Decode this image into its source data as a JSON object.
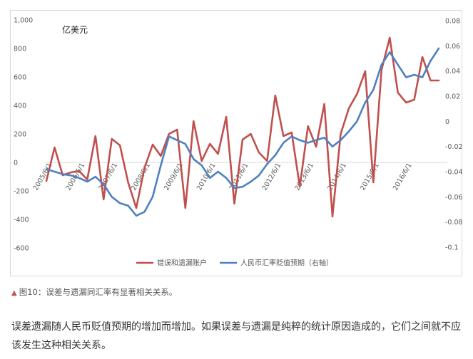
{
  "caption": {
    "marker": "▲",
    "text": "图10：误差与遗漏同汇率有显著相关关系。"
  },
  "body_text": "误差遗漏随人民币贬值预期的增加而增加。如果误差与遗漏是纯粹的统计原因造成的，它们之间就不应该发生这种相关关系。",
  "chart_data": {
    "type": "line",
    "unit_label": "亿美元",
    "left_axis": {
      "ylim": [
        -600,
        1000
      ],
      "ticks": [
        -600,
        -400,
        -200,
        0,
        200,
        400,
        600,
        800,
        1000
      ],
      "tick_labels": [
        "-600",
        "-400",
        "-200",
        "0",
        "200",
        "400",
        "600",
        "800",
        "1,000"
      ]
    },
    "right_axis": {
      "ylim": [
        -0.1,
        0.08
      ],
      "ticks": [
        -0.1,
        -0.08,
        -0.06,
        -0.04,
        -0.02,
        0,
        0.02,
        0.04,
        0.06,
        0.08
      ],
      "tick_labels": [
        "-0.1",
        "-0.08",
        "-0.06",
        "-0.04",
        "-0.02",
        "0",
        "0.02",
        "0.04",
        "0.06",
        "0.08"
      ]
    },
    "x_tick_labels": [
      "2005/6/1",
      "2006/6/1",
      "2007/6/1",
      "2008/6/1",
      "2009/6/1",
      "2010/6/1",
      "2011/6/1",
      "2012/6/1",
      "2013/6/1",
      "2014/6/1",
      "2015/6/1",
      "2016/6/1"
    ],
    "x_tick_positions": [
      0,
      4,
      8,
      12,
      16,
      20,
      24,
      28,
      32,
      36,
      40,
      44
    ],
    "x_count": 48,
    "series": [
      {
        "name": "错误和遗漏账户",
        "axis": "left",
        "color": "#c0504d",
        "values": [
          -130,
          105,
          -90,
          -70,
          -60,
          -120,
          185,
          -260,
          165,
          120,
          -140,
          -320,
          -40,
          125,
          45,
          200,
          230,
          -320,
          290,
          10,
          130,
          60,
          320,
          -290,
          160,
          200,
          70,
          10,
          470,
          185,
          210,
          -170,
          255,
          110,
          410,
          -380,
          200,
          380,
          480,
          640,
          -140,
          650,
          875,
          490,
          420,
          440,
          740,
          575,
          575
        ],
        "x_values": [
          0,
          1,
          2,
          3,
          4,
          5,
          6,
          7,
          8,
          9,
          10,
          11,
          12,
          13,
          14,
          15,
          16,
          17,
          18,
          19,
          20,
          21,
          22,
          23,
          24,
          25,
          26,
          27,
          28,
          29,
          30,
          31,
          32,
          33,
          34,
          35,
          36,
          37,
          38,
          39,
          40,
          41,
          42,
          43,
          44,
          45,
          46,
          47,
          48
        ]
      },
      {
        "name": "人民币汇率贬值预期（右轴）",
        "axis": "right",
        "color": "#4f81bd",
        "values": [
          -0.038,
          -0.04,
          -0.042,
          -0.043,
          -0.045,
          -0.048,
          -0.044,
          -0.05,
          -0.06,
          -0.065,
          -0.067,
          -0.075,
          -0.072,
          -0.06,
          -0.035,
          -0.012,
          -0.015,
          -0.018,
          -0.03,
          -0.035,
          -0.045,
          -0.04,
          -0.045,
          -0.053,
          -0.052,
          -0.048,
          -0.043,
          -0.034,
          -0.027,
          -0.017,
          -0.012,
          -0.015,
          -0.017,
          -0.015,
          -0.013,
          -0.02,
          -0.015,
          -0.008,
          0.0,
          0.015,
          0.025,
          0.045,
          0.055,
          0.045,
          0.035,
          0.037,
          0.035,
          0.048,
          0.058
        ],
        "x_values": [
          0,
          1,
          2,
          3,
          4,
          5,
          6,
          7,
          8,
          9,
          10,
          11,
          12,
          13,
          14,
          15,
          16,
          17,
          18,
          19,
          20,
          21,
          22,
          23,
          24,
          25,
          26,
          27,
          28,
          29,
          30,
          31,
          32,
          33,
          34,
          35,
          36,
          37,
          38,
          39,
          40,
          41,
          42,
          43,
          44,
          45,
          46,
          47,
          48
        ]
      }
    ],
    "legend_position": "bottom",
    "grid": false
  }
}
